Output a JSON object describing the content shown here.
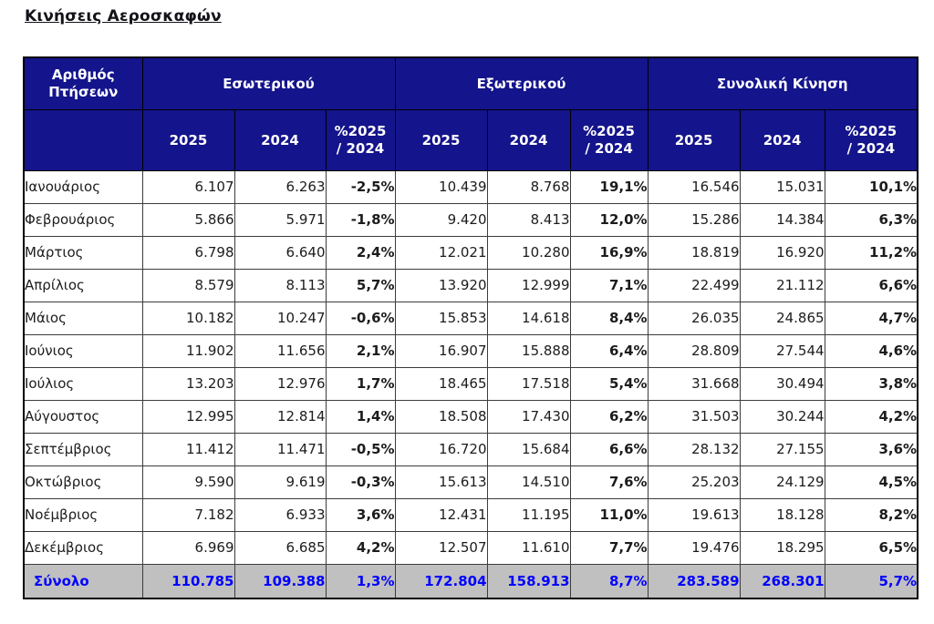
{
  "title": "Κινήσεις Αεροσκαφών",
  "colors": {
    "header_bg": "#14148C",
    "header_text": "#FFFFFF",
    "total_row_bg": "#C0C0C0",
    "total_row_text": "#0000FF",
    "body_text": "#1C1C1C",
    "grid_border": "#3C3C3C"
  },
  "table": {
    "corner_header": "Αριθμός\nΠτήσεων",
    "groups": [
      {
        "label": "Εσωτερικού"
      },
      {
        "label": "Εξωτερικού"
      },
      {
        "label": "Συνολική Κίνηση"
      }
    ],
    "sub_headers": {
      "y2025": "2025",
      "y2024": "2024",
      "pct": "%2025\n/ 2024"
    },
    "rows": [
      {
        "month": "Ιανουάριος",
        "cells": [
          "6.107",
          "6.263",
          "-2,5%",
          "10.439",
          "8.768",
          "19,1%",
          "16.546",
          "15.031",
          "10,1%"
        ]
      },
      {
        "month": "Φεβρουάριος",
        "cells": [
          "5.866",
          "5.971",
          "-1,8%",
          "9.420",
          "8.413",
          "12,0%",
          "15.286",
          "14.384",
          "6,3%"
        ]
      },
      {
        "month": "Μάρτιος",
        "cells": [
          "6.798",
          "6.640",
          "2,4%",
          "12.021",
          "10.280",
          "16,9%",
          "18.819",
          "16.920",
          "11,2%"
        ]
      },
      {
        "month": "Απρίλιος",
        "cells": [
          "8.579",
          "8.113",
          "5,7%",
          "13.920",
          "12.999",
          "7,1%",
          "22.499",
          "21.112",
          "6,6%"
        ]
      },
      {
        "month": "Μάιος",
        "cells": [
          "10.182",
          "10.247",
          "-0,6%",
          "15.853",
          "14.618",
          "8,4%",
          "26.035",
          "24.865",
          "4,7%"
        ]
      },
      {
        "month": "Ιούνιος",
        "cells": [
          "11.902",
          "11.656",
          "2,1%",
          "16.907",
          "15.888",
          "6,4%",
          "28.809",
          "27.544",
          "4,6%"
        ]
      },
      {
        "month": "Ιούλιος",
        "cells": [
          "13.203",
          "12.976",
          "1,7%",
          "18.465",
          "17.518",
          "5,4%",
          "31.668",
          "30.494",
          "3,8%"
        ]
      },
      {
        "month": "Αύγουστος",
        "cells": [
          "12.995",
          "12.814",
          "1,4%",
          "18.508",
          "17.430",
          "6,2%",
          "31.503",
          "30.244",
          "4,2%"
        ]
      },
      {
        "month": "Σεπτέμβριος",
        "cells": [
          "11.412",
          "11.471",
          "-0,5%",
          "16.720",
          "15.684",
          "6,6%",
          "28.132",
          "27.155",
          "3,6%"
        ]
      },
      {
        "month": "Οκτώβριος",
        "cells": [
          "9.590",
          "9.619",
          "-0,3%",
          "15.613",
          "14.510",
          "7,6%",
          "25.203",
          "24.129",
          "4,5%"
        ]
      },
      {
        "month": "Νοέμβριος",
        "cells": [
          "7.182",
          "6.933",
          "3,6%",
          "12.431",
          "11.195",
          "11,0%",
          "19.613",
          "18.128",
          "8,2%"
        ]
      },
      {
        "month": "Δεκέμβριος",
        "cells": [
          "6.969",
          "6.685",
          "4,2%",
          "12.507",
          "11.610",
          "7,7%",
          "19.476",
          "18.295",
          "6,5%"
        ]
      }
    ],
    "total": {
      "label": "Σύνολο",
      "cells": [
        "110.785",
        "109.388",
        "1,3%",
        "172.804",
        "158.913",
        "8,7%",
        "283.589",
        "268.301",
        "5,7%"
      ]
    }
  }
}
